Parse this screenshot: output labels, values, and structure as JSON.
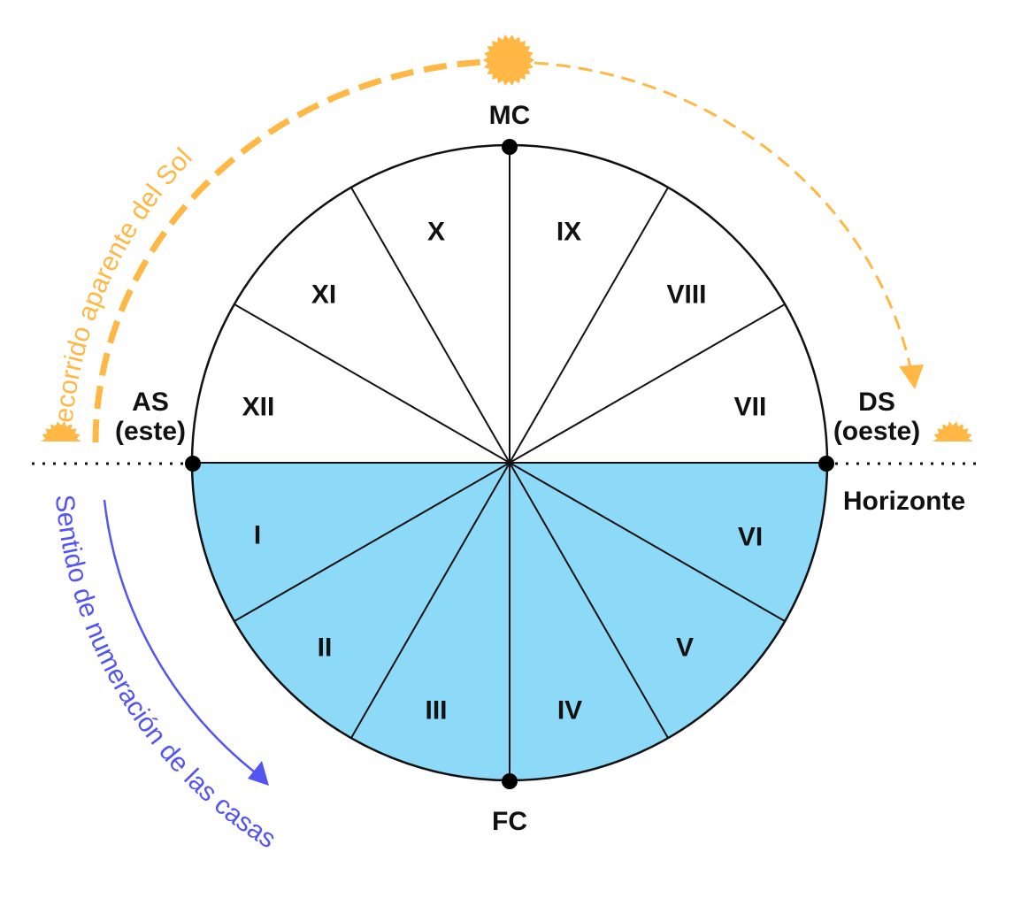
{
  "colors": {
    "sun": "#ffb845",
    "lower_half": "#8ddaf8",
    "numbering_arrow": "#5454f0",
    "line": "#111111"
  },
  "icons": [
    "sun-icon",
    "sunrise-icon",
    "sunset-icon"
  ],
  "labels": {
    "mc": "MC",
    "fc": "FC",
    "as": "AS",
    "as_sub": "(este)",
    "ds": "DS",
    "ds_sub": "(oeste)",
    "horizon": "Horizonte",
    "sun_path": "Recorrido aparente del Sol",
    "numbering": "Sentido de numeración de las casas"
  },
  "houses": [
    "I",
    "II",
    "III",
    "IV",
    "V",
    "VI",
    "VII",
    "VIII",
    "IX",
    "X",
    "XI",
    "XII"
  ]
}
